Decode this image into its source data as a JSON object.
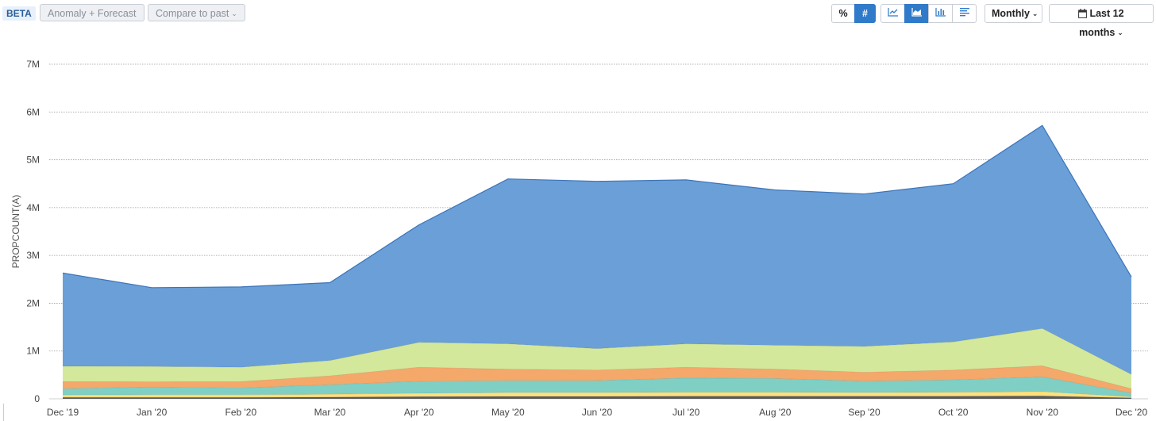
{
  "toolbar": {
    "beta_badge": "BETA",
    "anomaly_button": "Anomaly + Forecast",
    "compare_button": "Compare to past",
    "percent_button": "%",
    "count_button": "#",
    "interval_button": "Monthly",
    "range_button": "Last 12 months",
    "chart_type_icons": [
      "line-chart-icon",
      "area-chart-icon",
      "bar-chart-icon",
      "list-icon"
    ],
    "active_chart_type": "area-chart-icon",
    "active_metric_mode": "#"
  },
  "colors": {
    "accent": "#2f7ac9",
    "series": [
      "#5a5a5a",
      "#ffe07a",
      "#7fcfc4",
      "#f4a86a",
      "#d3e89a",
      "#6a9fd8"
    ]
  },
  "chart_data": {
    "type": "area",
    "stacked": true,
    "ylabel": "PROPCOUNT(A)",
    "ylim": [
      0,
      7000000
    ],
    "yticks": [
      "0",
      "1M",
      "2M",
      "3M",
      "4M",
      "5M",
      "6M",
      "7M"
    ],
    "grid": true,
    "categories": [
      "Dec '19",
      "Jan '20",
      "Feb '20",
      "Mar '20",
      "Apr '20",
      "May '20",
      "Jun '20",
      "Jul '20",
      "Aug '20",
      "Sep '20",
      "Oct '20",
      "Nov '20",
      "Dec '20"
    ],
    "series": [
      {
        "values": [
          30000,
          30000,
          30000,
          35000,
          45000,
          50000,
          50000,
          55000,
          55000,
          55000,
          55000,
          60000,
          20000
        ]
      },
      {
        "values": [
          50000,
          55000,
          55000,
          60000,
          70000,
          80000,
          80000,
          80000,
          80000,
          75000,
          80000,
          90000,
          20000
        ]
      },
      {
        "values": [
          130000,
          160000,
          140000,
          200000,
          250000,
          250000,
          250000,
          300000,
          290000,
          240000,
          260000,
          310000,
          80000
        ]
      },
      {
        "values": [
          150000,
          110000,
          135000,
          185000,
          295000,
          240000,
          220000,
          225000,
          195000,
          185000,
          205000,
          230000,
          90000
        ]
      },
      {
        "values": [
          320000,
          320000,
          300000,
          320000,
          520000,
          530000,
          450000,
          490000,
          500000,
          540000,
          590000,
          780000,
          300000
        ]
      },
      {
        "values": [
          1950000,
          1650000,
          1680000,
          1630000,
          2460000,
          3450000,
          3500000,
          3430000,
          3250000,
          3190000,
          3310000,
          4250000,
          2040000
        ]
      }
    ]
  }
}
